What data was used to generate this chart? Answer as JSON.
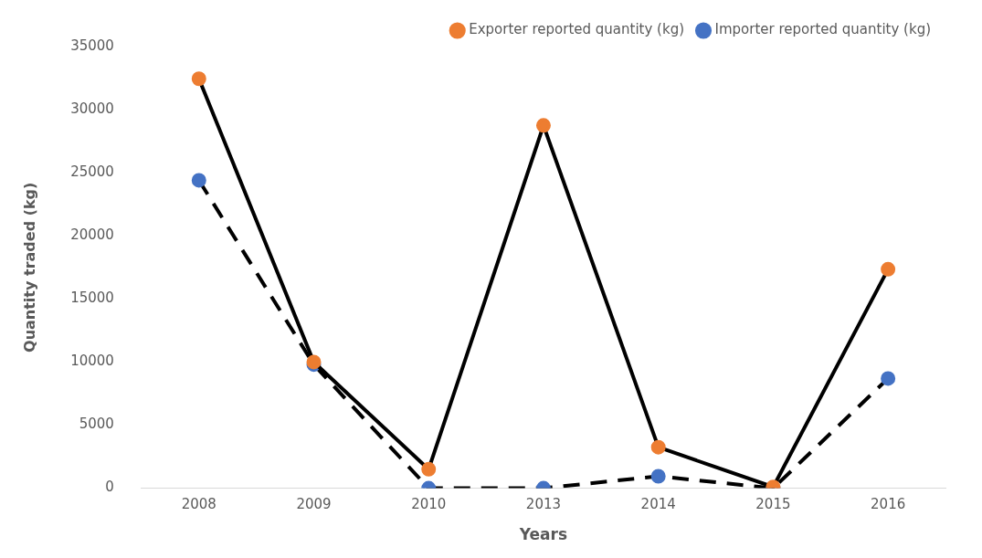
{
  "chart_data": {
    "type": "line",
    "xlabel": "Years",
    "ylabel": "Quantity traded (kg)",
    "categories": [
      "2008",
      "2009",
      "2010",
      "2013",
      "2014",
      "2015",
      "2016"
    ],
    "series": [
      {
        "name": "Importer reported quantity (kg)",
        "color": "#4472c4",
        "line_style": "dashed",
        "values": [
          24400,
          9800,
          0,
          0,
          950,
          0,
          8700
        ]
      },
      {
        "name": "Exporter reported quantity (kg)",
        "color": "#ed7d31",
        "line_style": "solid",
        "values": [
          32450,
          10000,
          1500,
          28750,
          3250,
          100,
          17350
        ]
      }
    ],
    "ylim": [
      0,
      35000
    ],
    "yticks": [
      0,
      5000,
      10000,
      15000,
      20000,
      25000,
      30000,
      35000
    ],
    "grid": false,
    "legend": "top right",
    "marker": "circle"
  }
}
